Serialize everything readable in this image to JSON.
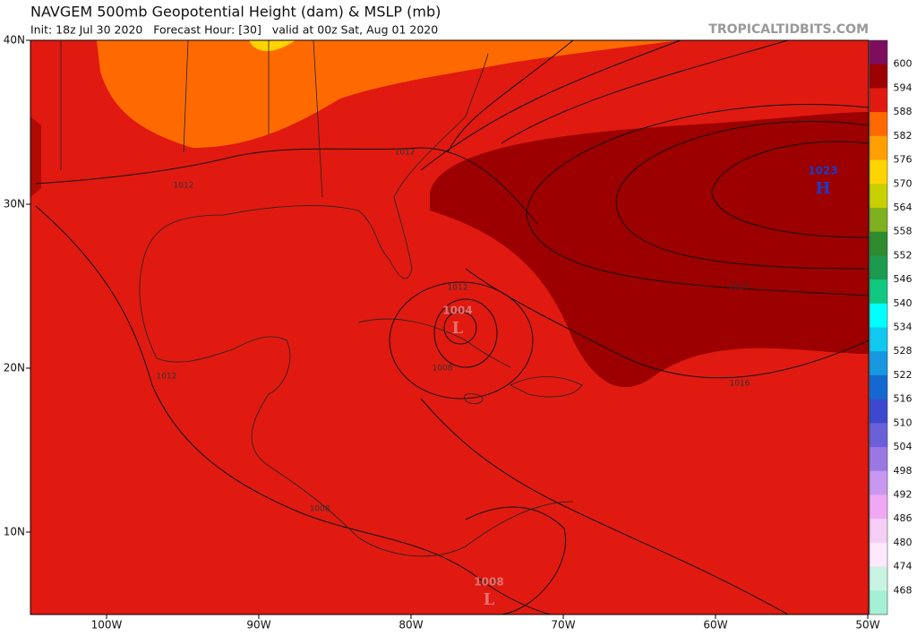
{
  "header": {
    "title": "NAVGEM 500mb Geopotential Height (dam) & MSLP (mb)",
    "subtitle": "Init: 18z Jul 30 2020   Forecast Hour: [30]   valid at 00z Sat, Aug 01 2020",
    "site": "TROPICALTIDBITS.COM"
  },
  "map": {
    "lat_labels": [
      "40N",
      "30N",
      "20N",
      "10N"
    ],
    "lon_labels": [
      "100W",
      "90W",
      "80W",
      "70W",
      "60W",
      "50W"
    ],
    "contour_labels": [
      "1012",
      "1012",
      "1012",
      "1012",
      "1008",
      "1008",
      "1004",
      "1008",
      "1020",
      "1016"
    ],
    "centers": [
      {
        "pressure": "1023",
        "symbol": "H"
      },
      {
        "pressure": "1004",
        "symbol": "L"
      },
      {
        "pressure": "1008",
        "symbol": "L"
      }
    ]
  },
  "colorbar": {
    "levels": [
      600,
      594,
      588,
      582,
      576,
      570,
      564,
      558,
      552,
      546,
      540,
      534,
      528,
      522,
      516,
      510,
      504,
      498,
      492,
      486,
      480,
      474,
      468
    ],
    "colors": [
      "#7d0e5e",
      "#9c0000",
      "#e01a10",
      "#ff6a00",
      "#ffa000",
      "#ffd400",
      "#c8d000",
      "#7fb020",
      "#2e8b2e",
      "#1c9a50",
      "#10c880",
      "#00ffff",
      "#10c8f0",
      "#1898e0",
      "#1468d0",
      "#3c48d0",
      "#6a60d8",
      "#9a78e4",
      "#c898f0",
      "#f0a8f4",
      "#f4cef6",
      "#fde8fd",
      "#c8f4e4",
      "#a4f0d4"
    ]
  }
}
